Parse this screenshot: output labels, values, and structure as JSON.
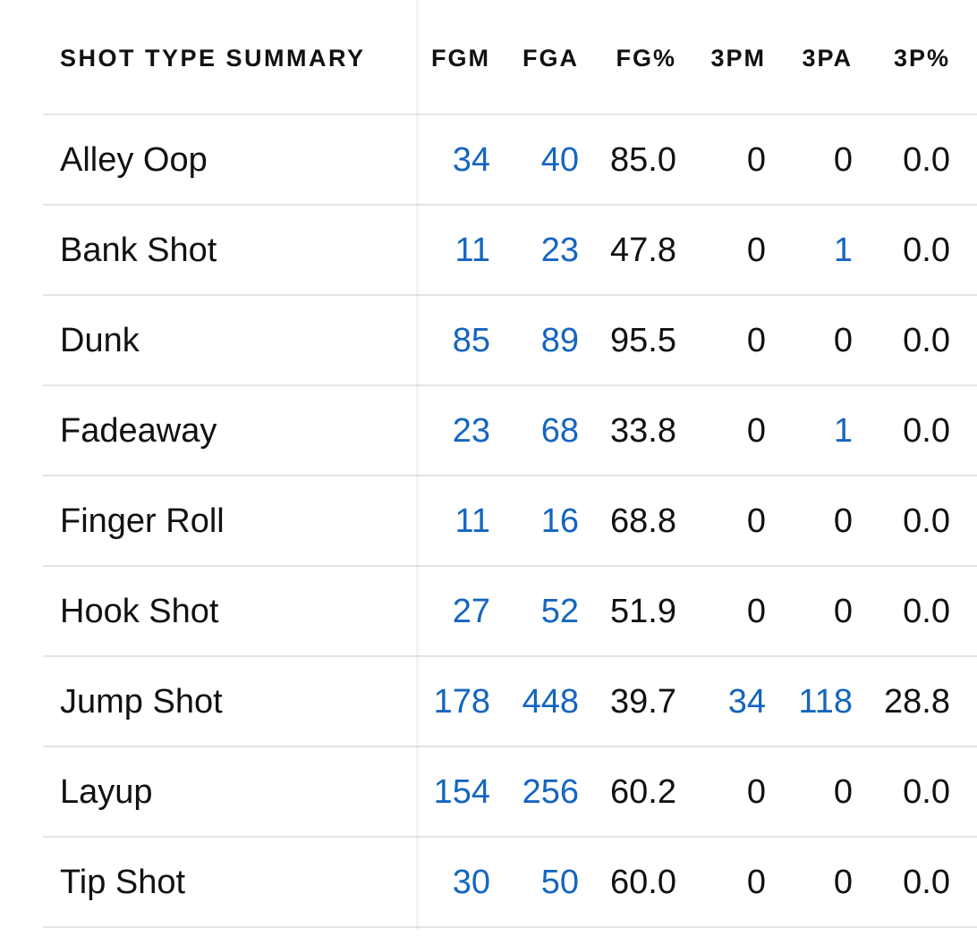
{
  "table": {
    "title": "SHOT TYPE SUMMARY",
    "columns": [
      "FGM",
      "FGA",
      "FG%",
      "3PM",
      "3PA",
      "3P%"
    ],
    "rows": [
      {
        "name": "Alley Oop",
        "fgm": "34",
        "fga": "40",
        "fgp": "85.0",
        "tpm": "0",
        "tpa": "0",
        "tpp": "0.0"
      },
      {
        "name": "Bank Shot",
        "fgm": "11",
        "fga": "23",
        "fgp": "47.8",
        "tpm": "0",
        "tpa": "1",
        "tpp": "0.0"
      },
      {
        "name": "Dunk",
        "fgm": "85",
        "fga": "89",
        "fgp": "95.5",
        "tpm": "0",
        "tpa": "0",
        "tpp": "0.0"
      },
      {
        "name": "Fadeaway",
        "fgm": "23",
        "fga": "68",
        "fgp": "33.8",
        "tpm": "0",
        "tpa": "1",
        "tpp": "0.0"
      },
      {
        "name": "Finger Roll",
        "fgm": "11",
        "fga": "16",
        "fgp": "68.8",
        "tpm": "0",
        "tpa": "0",
        "tpp": "0.0"
      },
      {
        "name": "Hook Shot",
        "fgm": "27",
        "fga": "52",
        "fgp": "51.9",
        "tpm": "0",
        "tpa": "0",
        "tpp": "0.0"
      },
      {
        "name": "Jump Shot",
        "fgm": "178",
        "fga": "448",
        "fgp": "39.7",
        "tpm": "34",
        "tpa": "118",
        "tpp": "28.8"
      },
      {
        "name": "Layup",
        "fgm": "154",
        "fga": "256",
        "fgp": "60.2",
        "tpm": "0",
        "tpa": "0",
        "tpp": "0.0"
      },
      {
        "name": "Tip Shot",
        "fgm": "30",
        "fga": "50",
        "fgp": "60.0",
        "tpm": "0",
        "tpa": "0",
        "tpp": "0.0"
      }
    ]
  },
  "colors": {
    "link": "#1565c0",
    "text": "#111111",
    "divider": "#e4e4e4"
  }
}
